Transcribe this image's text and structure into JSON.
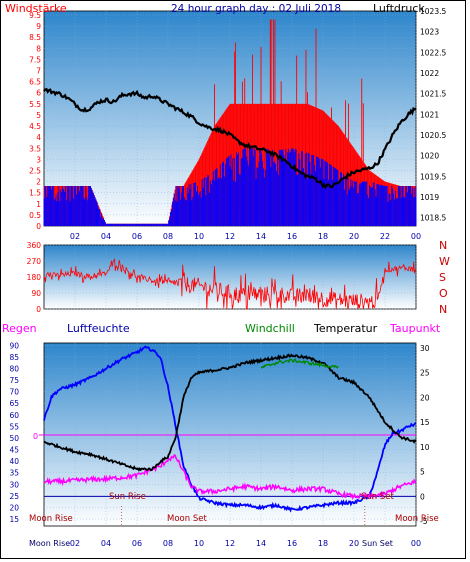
{
  "colors": {
    "wind_gust": "#ff0000",
    "wind_avg": "#0000ff",
    "pressure": "#000000",
    "wind_dir": "#ff0000",
    "humidity": "#0000ff",
    "temperature": "#000000",
    "windchill": "#008800",
    "dewpoint": "#ff00ff",
    "rain_line": "#ff00ff",
    "sky_top": "#3a90d0",
    "sky_bottom": "#ffffff"
  },
  "chart_data": [
    {
      "type": "line",
      "title": "24 hour graph day : 02 Juli 2018",
      "left_label": "Windstärke",
      "right_label": "Luftdruck",
      "x_ticks": [
        "02",
        "04",
        "06",
        "08",
        "10",
        "12",
        "14",
        "16",
        "18",
        "20",
        "22",
        "00"
      ],
      "y_left_ticks": [
        "0",
        "0.5",
        "1",
        "1.5",
        "2",
        "2.5",
        "3",
        "3.5",
        "4",
        "4.5",
        "5",
        "5.5",
        "6",
        "6.5",
        "7",
        "7.5",
        "8",
        "8.5",
        "9",
        "9.5"
      ],
      "y_left_range": [
        0,
        9.5
      ],
      "y_right_ticks": [
        "1018.5",
        "1019",
        "1019.5",
        "1020",
        "1020.5",
        "1021",
        "1021.5",
        "1022",
        "1022.5",
        "1023",
        "1023.5"
      ],
      "y_right_range": [
        1018.3,
        1023.5
      ],
      "series": [
        {
          "key": "pressure",
          "axis": "right",
          "x": [
            0,
            0.5,
            1,
            1.5,
            2,
            2.5,
            3,
            3.5,
            4,
            4.5,
            5,
            5.5,
            6,
            6.5,
            7,
            7.5,
            8,
            8.5,
            9,
            9.5,
            10,
            10.5,
            11,
            11.5,
            12,
            12.5,
            13,
            13.5,
            14,
            14.5,
            15,
            15.5,
            16,
            16.5,
            17,
            17.5,
            18,
            18.5,
            19,
            19.5,
            20,
            20.5,
            21,
            21.5,
            22,
            22.5,
            23,
            23.5,
            24
          ],
          "values": [
            1021.6,
            1021.55,
            1021.5,
            1021.4,
            1021.25,
            1021.1,
            1021.15,
            1021.3,
            1021.35,
            1021.3,
            1021.45,
            1021.5,
            1021.5,
            1021.4,
            1021.45,
            1021.35,
            1021.25,
            1021.15,
            1021.05,
            1020.95,
            1020.8,
            1020.7,
            1020.65,
            1020.6,
            1020.5,
            1020.35,
            1020.25,
            1020.2,
            1020.15,
            1020.1,
            1020.0,
            1019.9,
            1019.75,
            1019.6,
            1019.5,
            1019.45,
            1019.3,
            1019.25,
            1019.35,
            1019.5,
            1019.6,
            1019.65,
            1019.7,
            1019.8,
            1020.15,
            1020.5,
            1020.8,
            1021.0,
            1021.15
          ]
        },
        {
          "key": "wind_avg_base",
          "axis": "left",
          "note_free": true,
          "x": [
            0,
            1,
            2,
            3,
            4,
            5,
            6,
            7,
            8,
            8.5,
            9,
            10,
            11,
            12,
            13,
            14,
            15,
            16,
            17,
            18,
            19,
            20,
            21,
            22,
            23,
            24
          ],
          "values": [
            1.8,
            1.8,
            1.8,
            1.8,
            0.1,
            0.1,
            0.1,
            0.1,
            0.1,
            1.8,
            1.8,
            2,
            2.5,
            3.2,
            3.5,
            3.5,
            3.4,
            3.5,
            3.3,
            3,
            2.5,
            2,
            2,
            1.8,
            1.8,
            1.8
          ]
        },
        {
          "key": "wind_gust_base",
          "axis": "left",
          "x": [
            0,
            1,
            2,
            3,
            4,
            5,
            6,
            7,
            8,
            8.5,
            9,
            10,
            11,
            12,
            13,
            14,
            15,
            16,
            17,
            18,
            19,
            20,
            21,
            22,
            23,
            24
          ],
          "values": [
            1.8,
            1.8,
            1.8,
            1.8,
            0.1,
            0.1,
            0.1,
            0.1,
            0.1,
            1.8,
            1.8,
            3,
            4.5,
            5.5,
            5.5,
            5.5,
            5.5,
            5.5,
            5.5,
            5.2,
            4.5,
            3.5,
            2.5,
            2,
            1.8,
            1.8
          ]
        }
      ]
    },
    {
      "type": "line",
      "y_ticks": [
        "0",
        "90",
        "180",
        "270",
        "360"
      ],
      "y_range": [
        0,
        360
      ],
      "compass": [
        "N",
        "W",
        "S",
        "O",
        "N"
      ],
      "series": [
        {
          "key": "wind_dir",
          "x": [
            0,
            1,
            2,
            3,
            4,
            4.5,
            5,
            6,
            7,
            8,
            9,
            10,
            11,
            12,
            13,
            14,
            15,
            16,
            17,
            18,
            19,
            20,
            21,
            21.5,
            22,
            23,
            24
          ],
          "values": [
            190,
            190,
            200,
            180,
            200,
            260,
            240,
            180,
            160,
            150,
            140,
            130,
            110,
            90,
            80,
            80,
            90,
            70,
            80,
            60,
            50,
            45,
            40,
            45,
            220,
            230,
            230
          ]
        }
      ]
    },
    {
      "type": "line",
      "labels": {
        "rain": "Regen",
        "humidity": "Luftfeuchte",
        "windchill": "Windchill",
        "temperature": "Temperatur",
        "dewpoint": "Taupunkt"
      },
      "y_left_ticks": [
        "15",
        "20",
        "25",
        "30",
        "35",
        "40",
        "45",
        "50",
        "55",
        "60",
        "65",
        "70",
        "75",
        "80",
        "85",
        "90"
      ],
      "y_left_range": [
        12,
        91
      ],
      "y_right_ticks": [
        "-5",
        "0",
        "5",
        "10",
        "15",
        "20",
        "25",
        "30"
      ],
      "y_right_range": [
        -6,
        31
      ],
      "rain_zero_label": "0",
      "x_ticks": [
        "02",
        "04",
        "06",
        "08",
        "10",
        "12",
        "14",
        "16",
        "18",
        "20",
        "22",
        "00"
      ],
      "moon_rise_label": "Moon Rise",
      "moon_set_label": "Moon Set",
      "sun_rise_label": "Sun Rise",
      "sun_set_label": "Sun Set",
      "bottom_moon_rise": "Moon Rise",
      "bottom_sun": "Sun Set",
      "series": [
        {
          "key": "humidity",
          "axis": "left",
          "x": [
            0,
            0.5,
            1,
            2,
            3,
            4,
            5,
            6,
            6.5,
            7,
            7.5,
            8,
            8.5,
            9,
            9.5,
            10,
            11,
            12,
            13,
            14,
            15,
            16,
            17,
            18,
            19,
            20,
            21,
            21.5,
            22,
            22.5,
            23,
            23.5,
            24
          ],
          "values": [
            58,
            68,
            71,
            73,
            76,
            80,
            84,
            87,
            89,
            88,
            85,
            72,
            55,
            38,
            30,
            24,
            22,
            21,
            21,
            20,
            21,
            19,
            20,
            21,
            22,
            22,
            25,
            35,
            47,
            52,
            53,
            55,
            56
          ]
        },
        {
          "key": "temperature",
          "axis": "right",
          "x": [
            0,
            1,
            2,
            3,
            4,
            5,
            6,
            7,
            7.5,
            8,
            8.5,
            9,
            9.5,
            10,
            11,
            12,
            13,
            14,
            15,
            16,
            17,
            18,
            19,
            20,
            21,
            22,
            23,
            24
          ],
          "values": [
            11,
            10,
            9,
            8.5,
            7.5,
            6.5,
            5.5,
            5.5,
            7,
            8,
            12,
            20,
            24,
            25,
            25.5,
            26,
            27,
            27.5,
            28,
            28.5,
            28,
            27,
            24,
            23,
            20,
            15,
            12,
            11
          ]
        },
        {
          "key": "windchill",
          "axis": "right",
          "x": [
            14,
            15,
            16,
            17,
            18,
            19
          ],
          "values": [
            26,
            27,
            27.5,
            27,
            26.5,
            26
          ]
        },
        {
          "key": "dewpoint",
          "axis": "right",
          "x": [
            0,
            1,
            2,
            3,
            4,
            5,
            6,
            7,
            7.5,
            8,
            8.5,
            9,
            9.5,
            10,
            11,
            12,
            13,
            14,
            15,
            16,
            17,
            18,
            19,
            20,
            21,
            22,
            23,
            24
          ],
          "values": [
            3,
            3,
            3.2,
            3.4,
            3.5,
            3.8,
            4.2,
            5.5,
            6,
            7.5,
            8,
            5,
            2,
            1,
            1,
            1.5,
            2,
            1.5,
            2,
            1.2,
            1.5,
            1.5,
            0.5,
            0,
            0,
            0.5,
            2,
            3
          ]
        }
      ],
      "rain_line_value": 13
    }
  ]
}
